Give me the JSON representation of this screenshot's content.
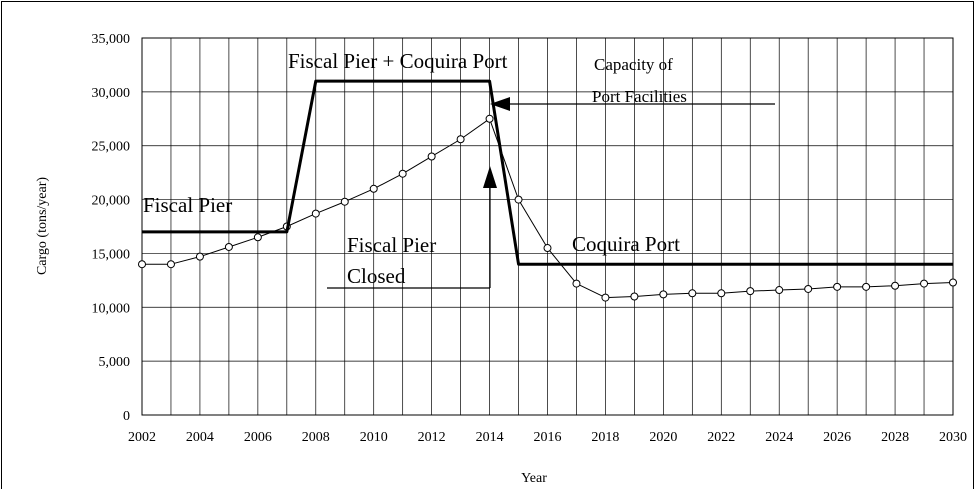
{
  "chart_data": {
    "type": "line",
    "x_label": "Year",
    "y_label": "Cargo (tons/year)",
    "x": [
      2002,
      2003,
      2004,
      2005,
      2006,
      2007,
      2008,
      2009,
      2010,
      2011,
      2012,
      2013,
      2014,
      2015,
      2016,
      2017,
      2018,
      2019,
      2020,
      2021,
      2022,
      2023,
      2024,
      2025,
      2026,
      2027,
      2028,
      2029,
      2030
    ],
    "series": [
      {
        "color": "#000000",
        "marker": "circle",
        "line_width": 1,
        "values": [
          14000,
          14000,
          14700,
          15600,
          16500,
          17500,
          18700,
          19800,
          21000,
          22400,
          24000,
          25600,
          27500,
          20000,
          15500,
          12200,
          10900,
          11000,
          11200,
          11300,
          11300,
          11500,
          11600,
          11700,
          11900,
          11900,
          12000,
          12200,
          12300
        ]
      },
      {
        "color": "#000000",
        "marker": "none",
        "line_width": 3,
        "x": [
          2002,
          2007,
          2008,
          2014,
          2015,
          2030
        ],
        "values": [
          17000,
          17000,
          31000,
          31000,
          14000,
          14000
        ]
      }
    ],
    "xlim": [
      2002,
      2030
    ],
    "xticks": [
      2002,
      2004,
      2006,
      2008,
      2010,
      2012,
      2014,
      2016,
      2018,
      2020,
      2022,
      2024,
      2026,
      2028,
      2030
    ],
    "ylim": [
      0,
      35000
    ],
    "yticks": [
      0,
      {
        "value": 5000,
        "label": "5,000"
      },
      {
        "value": 10000,
        "label": "10,000"
      },
      {
        "value": 15000,
        "label": "15,000"
      },
      {
        "value": 20000,
        "label": "20,000"
      },
      {
        "value": 25000,
        "label": "25,000"
      },
      {
        "value": 30000,
        "label": "30,000"
      },
      {
        "value": 35000,
        "label": "35,000"
      }
    ],
    "grid": true,
    "annotations": [
      "Fiscal Pier",
      "Fiscal Pier + Coquira Port",
      "Capacity of",
      "Port Facilities",
      "Fiscal Pier",
      "Closed",
      "Coquira Port"
    ]
  }
}
